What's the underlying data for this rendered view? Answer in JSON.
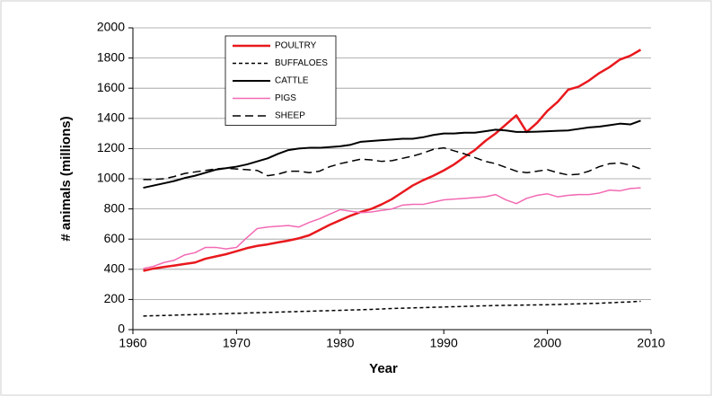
{
  "chart_data": {
    "type": "line",
    "x_label": "Year",
    "y_label": "# animals (millions)",
    "x": [
      1961,
      1962,
      1963,
      1964,
      1965,
      1966,
      1967,
      1968,
      1969,
      1970,
      1971,
      1972,
      1973,
      1974,
      1975,
      1976,
      1977,
      1978,
      1979,
      1980,
      1981,
      1982,
      1983,
      1984,
      1985,
      1986,
      1987,
      1988,
      1989,
      1990,
      1991,
      1992,
      1993,
      1994,
      1995,
      1996,
      1997,
      1998,
      1999,
      2000,
      2001,
      2002,
      2003,
      2004,
      2005,
      2006,
      2007,
      2008,
      2009
    ],
    "xlim": [
      1960,
      2010
    ],
    "xticks": [
      1960,
      1970,
      1980,
      1990,
      2000,
      2010
    ],
    "ylim": [
      0,
      2000
    ],
    "yticks": [
      0,
      200,
      400,
      600,
      800,
      1000,
      1200,
      1400,
      1600,
      1800,
      2000
    ],
    "grid": true,
    "series": [
      {
        "name": "POULTRY",
        "color": "#e8191e",
        "linestyle": "solid",
        "width": 2.5,
        "values": [
          390,
          405,
          415,
          425,
          435,
          445,
          470,
          485,
          500,
          520,
          540,
          555,
          565,
          578,
          590,
          605,
          625,
          660,
          695,
          725,
          755,
          780,
          800,
          830,
          865,
          910,
          955,
          990,
          1020,
          1055,
          1095,
          1145,
          1190,
          1250,
          1300,
          1360,
          1420,
          1310,
          1370,
          1450,
          1510,
          1590,
          1610,
          1650,
          1700,
          1740,
          1790,
          1815,
          1855
        ]
      },
      {
        "name": "BUFFALOES",
        "color": "#000000",
        "linestyle": "dotted",
        "width": 1.5,
        "values": [
          90,
          92,
          94,
          96,
          98,
          100,
          102,
          104,
          106,
          108,
          110,
          112,
          114,
          116,
          118,
          120,
          122,
          124,
          126,
          128,
          130,
          132,
          134,
          137,
          140,
          142,
          144,
          146,
          148,
          150,
          152,
          154,
          156,
          158,
          160,
          161,
          162,
          163,
          164,
          165,
          167,
          169,
          171,
          173,
          175,
          178,
          181,
          184,
          188
        ]
      },
      {
        "name": "CATTLE",
        "color": "#000000",
        "linestyle": "solid",
        "width": 2,
        "values": [
          940,
          955,
          970,
          985,
          1005,
          1020,
          1040,
          1060,
          1070,
          1080,
          1095,
          1115,
          1135,
          1165,
          1190,
          1200,
          1205,
          1205,
          1210,
          1215,
          1225,
          1245,
          1250,
          1255,
          1260,
          1265,
          1265,
          1275,
          1290,
          1300,
          1300,
          1305,
          1305,
          1315,
          1325,
          1320,
          1310,
          1310,
          1312,
          1315,
          1318,
          1320,
          1330,
          1340,
          1345,
          1355,
          1365,
          1360,
          1385
        ]
      },
      {
        "name": "PIGS",
        "color": "#f26ab3",
        "linestyle": "solid",
        "width": 1.5,
        "values": [
          405,
          420,
          445,
          460,
          495,
          510,
          545,
          545,
          535,
          545,
          610,
          670,
          680,
          685,
          690,
          680,
          710,
          735,
          765,
          795,
          785,
          775,
          780,
          790,
          800,
          825,
          830,
          830,
          845,
          860,
          865,
          870,
          875,
          880,
          895,
          860,
          835,
          870,
          890,
          900,
          880,
          890,
          895,
          895,
          905,
          925,
          920,
          935,
          940
        ]
      },
      {
        "name": "SHEEP",
        "color": "#000000",
        "linestyle": "dashed",
        "width": 1.5,
        "values": [
          995,
          995,
          1000,
          1015,
          1035,
          1045,
          1055,
          1065,
          1070,
          1065,
          1060,
          1055,
          1020,
          1030,
          1050,
          1050,
          1040,
          1050,
          1080,
          1100,
          1115,
          1130,
          1125,
          1115,
          1120,
          1135,
          1150,
          1170,
          1195,
          1205,
          1185,
          1165,
          1140,
          1115,
          1100,
          1075,
          1050,
          1040,
          1050,
          1060,
          1040,
          1025,
          1030,
          1050,
          1080,
          1100,
          1105,
          1090,
          1065
        ]
      }
    ]
  }
}
